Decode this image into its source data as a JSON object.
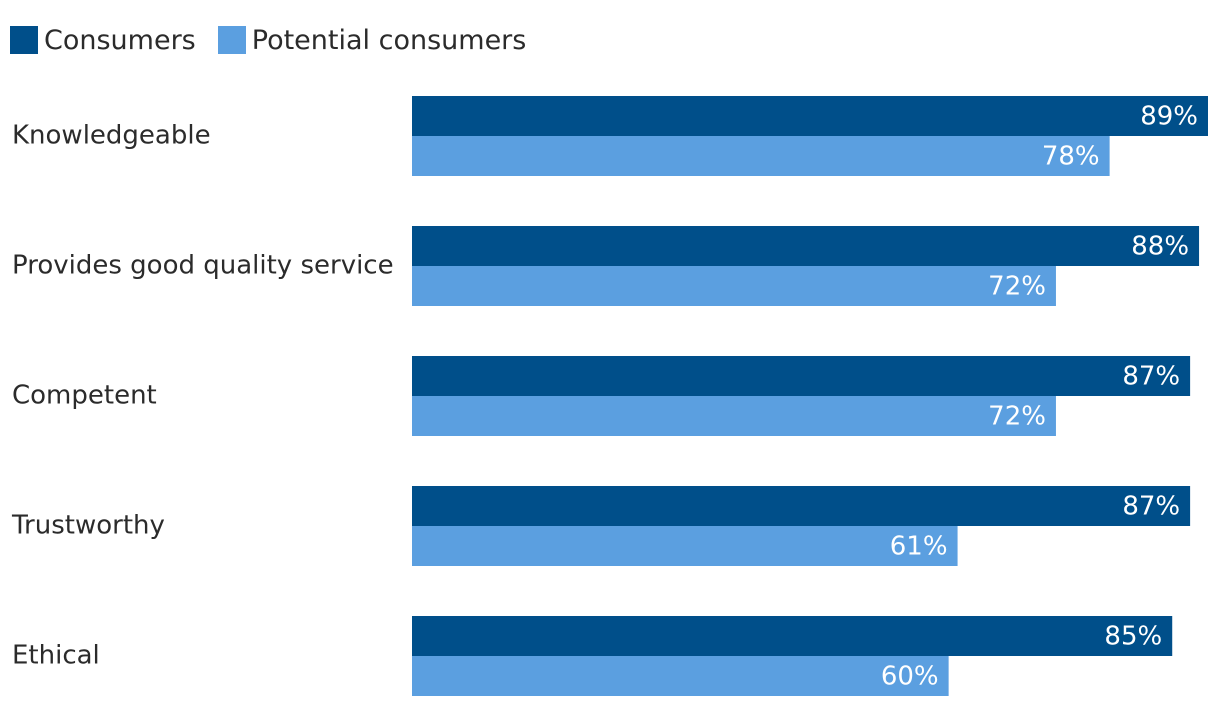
{
  "chart_data": {
    "type": "bar",
    "orientation": "horizontal",
    "categories": [
      "Knowledgeable",
      "Provides good quality service",
      "Competent",
      "Trustworthy",
      "Ethical"
    ],
    "series": [
      {
        "name": "Consumers",
        "color": "#004f8a",
        "values": [
          89,
          88,
          87,
          87,
          85
        ],
        "labels": [
          "89%",
          "88%",
          "87%",
          "87%",
          "85%"
        ]
      },
      {
        "name": "Potential consumers",
        "color": "#5b9fe0",
        "values": [
          78,
          72,
          72,
          61,
          60
        ],
        "labels": [
          "78%",
          "72%",
          "72%",
          "61%",
          "60%"
        ]
      }
    ],
    "xlim": [
      0,
      89
    ],
    "legend": "top-left",
    "grid": false
  }
}
